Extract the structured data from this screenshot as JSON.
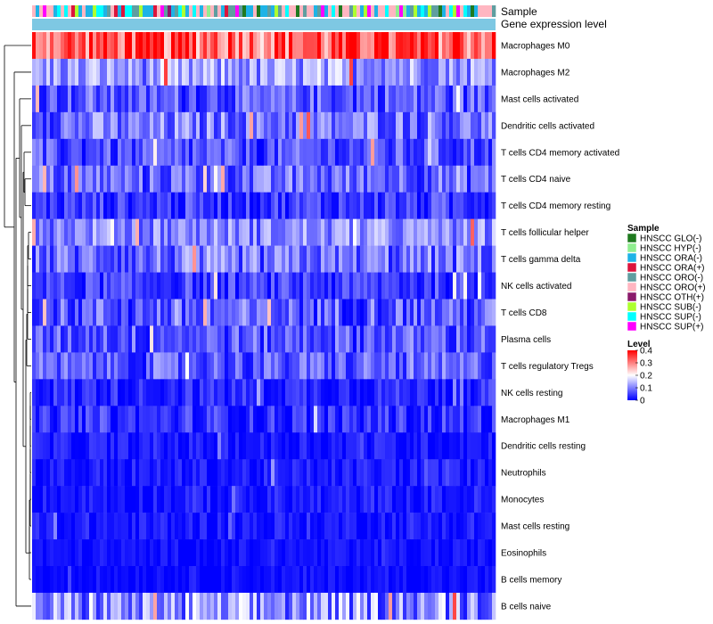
{
  "chart_data": {
    "type": "heatmap",
    "title": "",
    "annotation_rows": [
      "Sample",
      "Gene expression level"
    ],
    "rows": [
      {
        "label": "Macrophages M0",
        "mean": 0.3,
        "spread": 0.1
      },
      {
        "label": "Macrophages M2",
        "mean": 0.1,
        "spread": 0.07
      },
      {
        "label": "Mast cells activated",
        "mean": 0.05,
        "spread": 0.06
      },
      {
        "label": "Dendritic cells activated",
        "mean": 0.07,
        "spread": 0.07
      },
      {
        "label": "T cells CD4 memory activated",
        "mean": 0.04,
        "spread": 0.06
      },
      {
        "label": "T cells CD4 naive",
        "mean": 0.06,
        "spread": 0.07
      },
      {
        "label": "T cells CD4 memory resting",
        "mean": 0.03,
        "spread": 0.05
      },
      {
        "label": "T cells follicular helper",
        "mean": 0.09,
        "spread": 0.06
      },
      {
        "label": "T cells gamma delta",
        "mean": 0.06,
        "spread": 0.07
      },
      {
        "label": "NK cells activated",
        "mean": 0.03,
        "spread": 0.05
      },
      {
        "label": "T cells CD8",
        "mean": 0.05,
        "spread": 0.07
      },
      {
        "label": "Plasma cells",
        "mean": 0.05,
        "spread": 0.06
      },
      {
        "label": "T cells regulatory  Tregs",
        "mean": 0.05,
        "spread": 0.06
      },
      {
        "label": "NK cells resting",
        "mean": 0.02,
        "spread": 0.04
      },
      {
        "label": "Macrophages M1",
        "mean": 0.02,
        "spread": 0.05
      },
      {
        "label": "Dendritic cells resting",
        "mean": 0.01,
        "spread": 0.03
      },
      {
        "label": "Neutrophils",
        "mean": 0.01,
        "spread": 0.03
      },
      {
        "label": "Monocytes",
        "mean": 0.01,
        "spread": 0.03
      },
      {
        "label": "Mast cells resting",
        "mean": 0.01,
        "spread": 0.03
      },
      {
        "label": "Eosinophils",
        "mean": 0.005,
        "spread": 0.02
      },
      {
        "label": "B cells memory",
        "mean": 0.005,
        "spread": 0.02
      },
      {
        "label": "B cells naive",
        "mean": 0.08,
        "spread": 0.09
      }
    ],
    "n_columns": 130,
    "value_range": [
      0,
      0.4
    ],
    "legend_sample": {
      "title": "Sample",
      "entries": [
        {
          "label": "HNSCC GLO(-)",
          "color": "#1f7a1f"
        },
        {
          "label": "HNSCC HYP(-)",
          "color": "#90ee90"
        },
        {
          "label": "HNSCC ORA(-)",
          "color": "#1eb3e6"
        },
        {
          "label": "HNSCC ORA(+)",
          "color": "#dc143c"
        },
        {
          "label": "HNSCC ORO(-)",
          "color": "#5f9ea0"
        },
        {
          "label": "HNSCC ORO(+)",
          "color": "#ffb6c1"
        },
        {
          "label": "HNSCC OTH(+)",
          "color": "#8b1a6b"
        },
        {
          "label": "HNSCC SUB(-)",
          "color": "#adff2f"
        },
        {
          "label": "HNSCC SUP(-)",
          "color": "#00ffff"
        },
        {
          "label": "HNSCC SUP(+)",
          "color": "#ff00ff"
        }
      ]
    },
    "legend_level": {
      "title": "Level",
      "ticks": [
        "0.4",
        "0.3",
        "0.2",
        "0.1",
        "0"
      ]
    },
    "gene_expression_color": "#7ec8e3",
    "colors": {
      "low": "#0000ff",
      "mid": "#ffffff",
      "high": "#ff0000"
    }
  }
}
